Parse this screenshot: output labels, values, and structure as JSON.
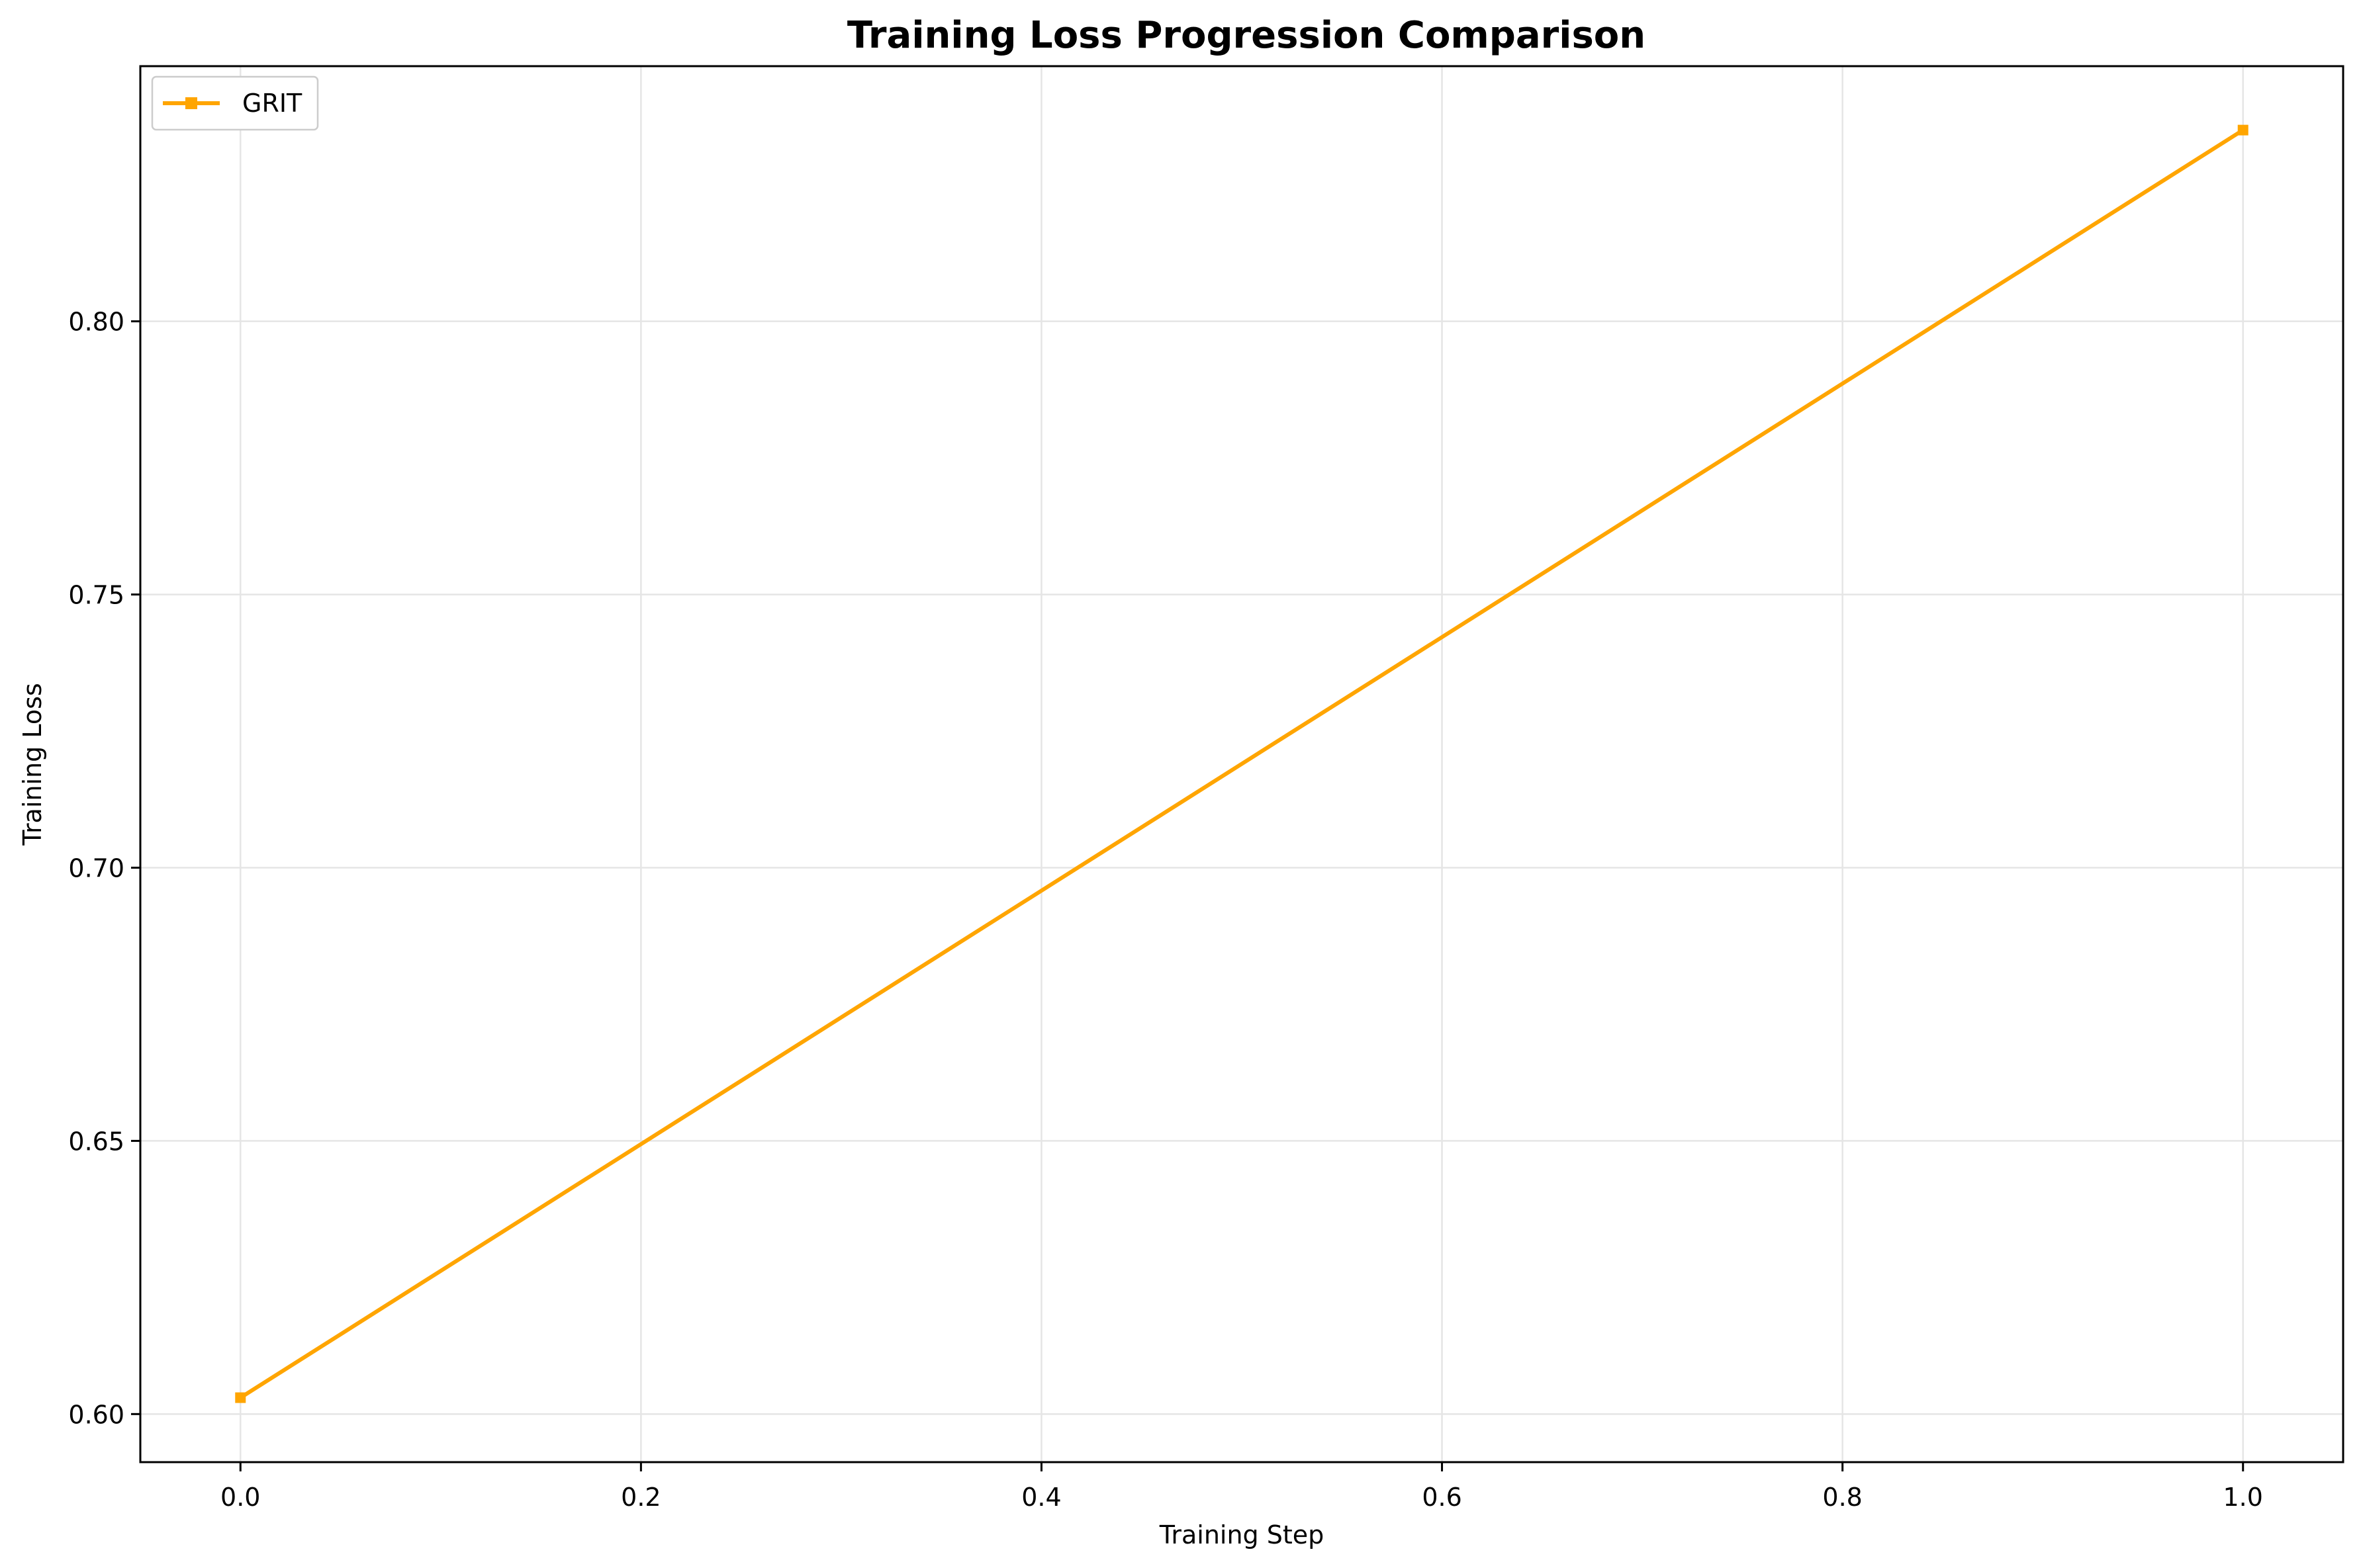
{
  "chart_data": {
    "type": "line",
    "title": "Training Loss Progression Comparison",
    "xlabel": "Training Step",
    "ylabel": "Training Loss",
    "xlim": [
      -0.05,
      1.05
    ],
    "ylim": [
      0.5912,
      0.8467
    ],
    "xticks": [
      0.0,
      0.2,
      0.4,
      0.6,
      0.8,
      1.0
    ],
    "xtick_labels": [
      "0.0",
      "0.2",
      "0.4",
      "0.6",
      "0.8",
      "1.0"
    ],
    "yticks": [
      0.6,
      0.65,
      0.7,
      0.75,
      0.8
    ],
    "ytick_labels": [
      "0.60",
      "0.65",
      "0.70",
      "0.75",
      "0.80"
    ],
    "grid": true,
    "legend_position": "top-left",
    "series": [
      {
        "name": "GRIT",
        "color": "#FFA500",
        "marker": "square",
        "x": [
          0.0,
          1.0
        ],
        "y": [
          0.603,
          0.835
        ]
      }
    ]
  }
}
